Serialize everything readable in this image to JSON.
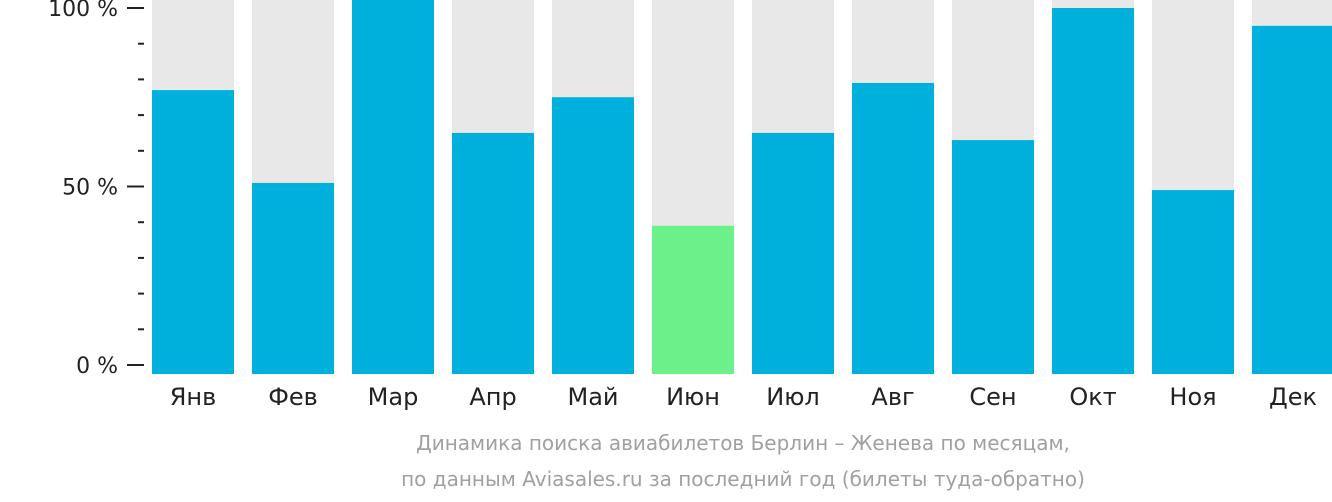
{
  "chart_data": {
    "type": "bar",
    "categories": [
      "Янв",
      "Фев",
      "Мар",
      "Апр",
      "Май",
      "Июн",
      "Июл",
      "Авг",
      "Сен",
      "Окт",
      "Ноя",
      "Дек"
    ],
    "values": [
      77,
      51,
      104,
      65,
      75,
      39,
      65,
      79,
      63,
      100,
      49,
      95
    ],
    "highlight_index": 5,
    "ylim": [
      0,
      100
    ],
    "yticks": [
      {
        "value": 0,
        "label": "0 %"
      },
      {
        "value": 50,
        "label": "50 %"
      },
      {
        "value": 100,
        "label": "100 %"
      }
    ],
    "minor_ticks": [
      10,
      20,
      30,
      40,
      60,
      70,
      80,
      90
    ],
    "colors": {
      "bar": "#00b0dc",
      "highlight": "#6cf08a",
      "background_bar": "#e8e8e8",
      "axis": "#222222"
    },
    "caption_lines": [
      "Динамика поиска авиабилетов Берлин – Женева по месяцам,",
      "по данным Aviasales.ru за последний год (билеты туда-обратно)"
    ]
  }
}
